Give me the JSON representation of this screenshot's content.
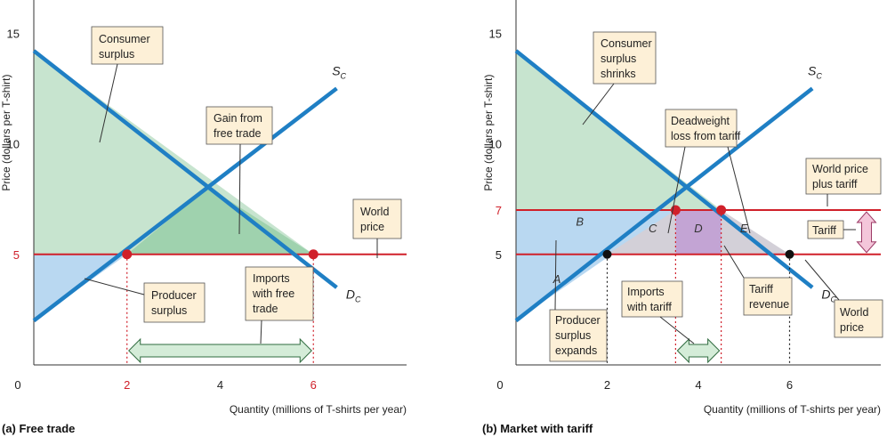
{
  "chart_data": [
    {
      "type": "line",
      "title": "",
      "panel_label": "(a) Free trade",
      "xlabel": "Quantity (millions of T-shirts per year)",
      "ylabel": "Price (dollars per T-shirt)",
      "xlim": [
        0,
        8
      ],
      "ylim": [
        0,
        16.5
      ],
      "x_ticks": [
        "0",
        "2",
        "4",
        "6"
      ],
      "y_ticks": [
        "5",
        "10",
        "15"
      ],
      "red_x_ticks": [
        "2",
        "6"
      ],
      "red_y_ticks": [
        "5"
      ],
      "supply": {
        "name": "S",
        "subscript": "C",
        "points": [
          [
            0,
            2
          ],
          [
            6.5,
            12.5
          ]
        ]
      },
      "demand": {
        "name": "D",
        "subscript": "C",
        "points": [
          [
            0,
            14.2
          ],
          [
            6.5,
            3.5
          ]
        ]
      },
      "world_price": 5,
      "equilibrium_points": [
        [
          2,
          5
        ],
        [
          6,
          5
        ]
      ],
      "annotations": {
        "consumer_surplus": "Consumer surplus",
        "producer_surplus": "Producer surplus",
        "gain_from_free_trade": "Gain from free trade",
        "world_price": "World price",
        "imports": "Imports with free trade"
      },
      "imports_range": [
        2,
        6
      ]
    },
    {
      "type": "line",
      "title": "",
      "panel_label": "(b) Market with tariff",
      "xlabel": "Quantity (millions of T-shirts per year)",
      "ylabel": "Price (dollars per T-shirt)",
      "xlim": [
        0,
        8
      ],
      "ylim": [
        0,
        16.5
      ],
      "x_ticks": [
        "0",
        "2",
        "4",
        "6"
      ],
      "y_ticks": [
        "5",
        "7",
        "10",
        "15"
      ],
      "red_x_ticks": [],
      "red_y_ticks": [
        "7"
      ],
      "supply": {
        "name": "S",
        "subscript": "C",
        "points": [
          [
            0,
            2
          ],
          [
            6.5,
            12.5
          ]
        ]
      },
      "demand": {
        "name": "D",
        "subscript": "C",
        "points": [
          [
            0,
            14.2
          ],
          [
            6.5,
            3.5
          ]
        ]
      },
      "world_price": 5,
      "world_price_plus_tariff": 7,
      "tariff_points": [
        [
          3.5,
          7
        ],
        [
          4.5,
          7
        ]
      ],
      "world_price_points": [
        [
          2,
          5
        ],
        [
          6,
          5
        ]
      ],
      "areas": [
        "A",
        "B",
        "C",
        "D",
        "E"
      ],
      "annotations": {
        "consumer_surplus": "Consumer surplus shrinks",
        "producer_surplus": "Producer surplus expands",
        "deadweight_loss": "Deadweight loss from tariff",
        "world_price_plus_tariff": "World price plus tariff",
        "tariff": "Tariff",
        "tariff_revenue": "Tariff revenue",
        "world_price": "World price",
        "imports": "Imports with tariff"
      },
      "imports_range": [
        3.5,
        4.5
      ]
    }
  ],
  "colors": {
    "curve_blue": "#1f7fc4",
    "world_price_red": "#d0202a",
    "consumer_green": "#c7e4cf",
    "gain_green": "#9fd2ae",
    "producer_blue": "#b9d8f1",
    "deadweight_gray": "#d3d0d8",
    "revenue_purple": "#c3a4d4",
    "box_fill": "#fdf0d7",
    "arrow_fill": "#d4ecd8",
    "tariff_arrow_fill": "#f4c6da"
  }
}
